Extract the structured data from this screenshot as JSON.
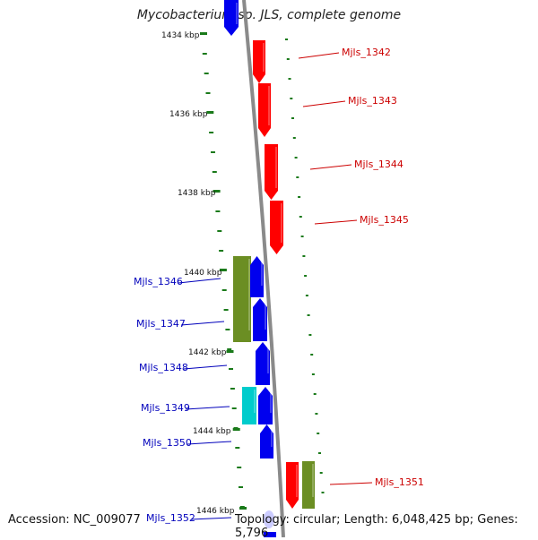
{
  "title": "Mycobacterium sp. JLS, complete genome",
  "accession": "Accession: NC_009077",
  "topology": "Topology: circular; Length: 6,048,425 bp; Genes: 5,796",
  "colors": {
    "backbone": "#8a8a8a",
    "ticks": "#1a7a1a",
    "red": "#ff0000",
    "blue": "#0000ee",
    "olive": "#6b8e23",
    "cyan": "#00cccc",
    "label_red": "#cc0000",
    "label_blue": "#0000bb"
  },
  "kbp_labels": [
    "1434 kbp",
    "1436 kbp",
    "1438 kbp",
    "1440 kbp",
    "1442 kbp",
    "1444 kbp",
    "1446 kbp"
  ],
  "gene_labels": [
    "Mjls_1342",
    "Mjls_1343",
    "Mjls_1344",
    "Mjls_1345",
    "Mjls_1346",
    "Mjls_1347",
    "Mjls_1348",
    "Mjls_1349",
    "Mjls_1350",
    "Mjls_1351",
    "Mjls_1352"
  ]
}
